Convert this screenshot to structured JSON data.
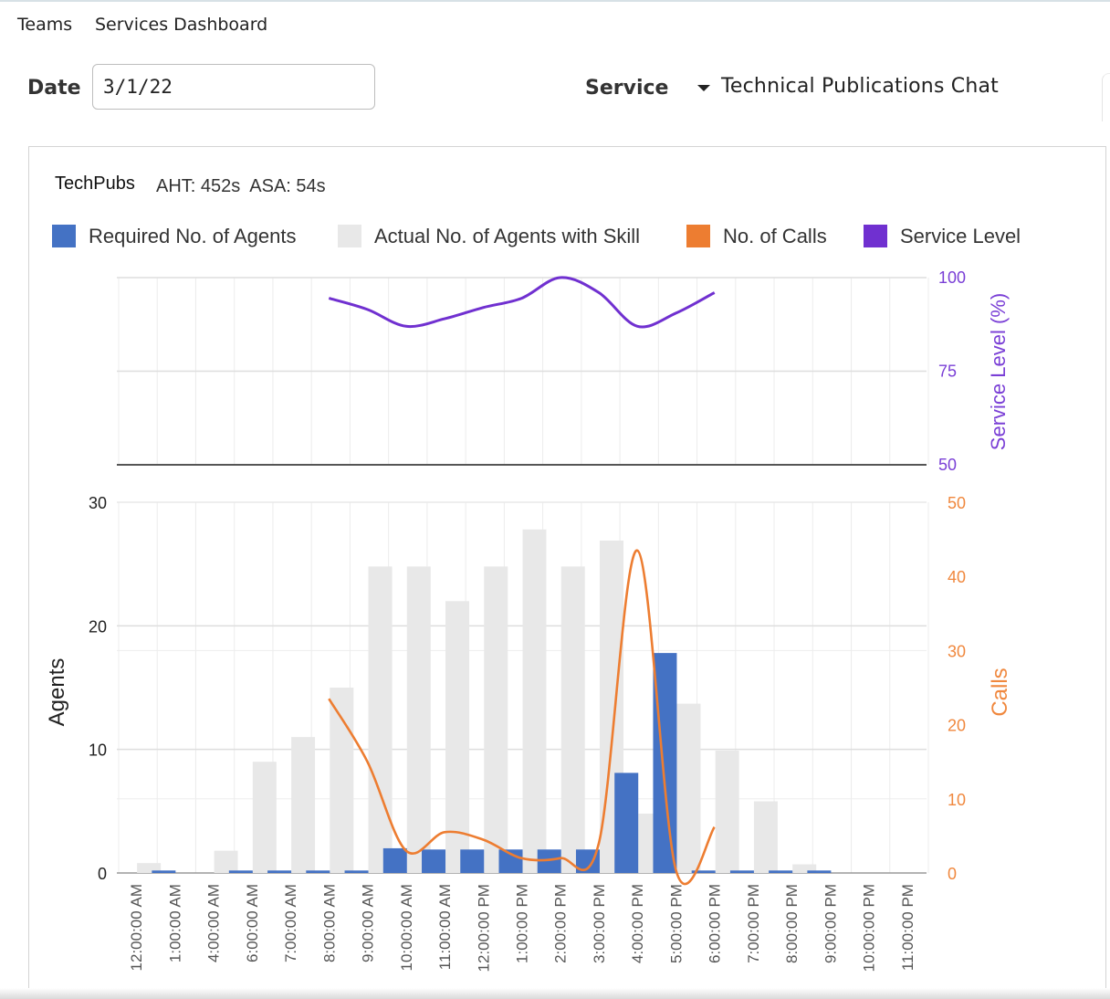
{
  "nav": {
    "teams": "Teams",
    "dashboard": "Services Dashboard"
  },
  "filters": {
    "date_label": "Date",
    "date_value": "3/1/22",
    "service_label": "Service",
    "service_value": "Technical Publications Chat"
  },
  "chart_header": {
    "team": "TechPubs",
    "metrics": "AHT: 452s  ASA: 54s"
  },
  "colors": {
    "required": "#4472c4",
    "actual": "#e8e8e8",
    "calls": "#ed7d31",
    "service_level": "#7030d0",
    "calls_axis": "#f0883e",
    "sl_axis": "#7a3fd6"
  },
  "chart_data": [
    {
      "type": "line",
      "title": "",
      "ylabel": "Service Level (%)",
      "ylim": [
        50,
        100
      ],
      "yticks": [
        50,
        75,
        100
      ],
      "legend": [
        {
          "name": "Required No. of Agents",
          "color": "#4472c4"
        },
        {
          "name": "Actual No. of Agents with Skill",
          "color": "#e8e8e8"
        },
        {
          "name": "No. of Calls",
          "color": "#ed7d31"
        },
        {
          "name": "Service Level",
          "color": "#7030d0"
        }
      ],
      "legend_position": "top",
      "grid": true,
      "x": [
        "8:00:00 AM",
        "9:00:00 AM",
        "10:00:00 AM",
        "11:00:00 AM",
        "12:00:00 PM",
        "1:00:00 PM",
        "2:00:00 PM",
        "3:00:00 PM",
        "4:00:00 PM",
        "5:00:00 PM",
        "6:00:00 PM"
      ],
      "series": [
        {
          "name": "Service Level",
          "values": [
            94.5,
            91.5,
            87,
            89,
            92,
            94.5,
            100,
            96,
            87,
            90.5,
            96
          ]
        }
      ]
    },
    {
      "type": "bar",
      "title": "",
      "categories": [
        "12:00:00 AM",
        "1:00:00 AM",
        "4:00:00 AM",
        "6:00:00 AM",
        "7:00:00 AM",
        "8:00:00 AM",
        "9:00:00 AM",
        "10:00:00 AM",
        "11:00:00 AM",
        "12:00:00 PM",
        "1:00:00 PM",
        "2:00:00 PM",
        "3:00:00 PM",
        "4:00:00 PM",
        "5:00:00 PM",
        "6:00:00 PM",
        "7:00:00 PM",
        "8:00:00 PM",
        "9:00:00 PM",
        "10:00:00 PM",
        "11:00:00 PM"
      ],
      "xlabel": "",
      "ylabel": "Agents",
      "ylim": [
        0,
        30
      ],
      "yticks": [
        0,
        10,
        20,
        30
      ],
      "y2label": "Calls",
      "y2lim": [
        0,
        50
      ],
      "y2ticks": [
        0,
        10,
        20,
        30,
        40,
        50
      ],
      "grid": true,
      "series": [
        {
          "name": "Required No. of Agents",
          "axis": "left",
          "values": [
            0,
            0.2,
            0,
            0.2,
            0.2,
            0.2,
            0.2,
            2,
            1.9,
            1.9,
            1.9,
            1.9,
            1.9,
            8.1,
            17.8,
            0.2,
            0.2,
            0.2,
            0.2,
            0,
            0
          ]
        },
        {
          "name": "Actual No. of Agents with Skill",
          "axis": "left",
          "values": [
            0.8,
            0,
            1.8,
            9,
            11,
            15,
            24.8,
            24.8,
            22,
            24.8,
            27.8,
            24.8,
            26.9,
            4.8,
            13.7,
            9.9,
            5.8,
            0.7,
            0,
            0,
            0
          ]
        },
        {
          "name": "No. of Calls",
          "axis": "right",
          "type": "line",
          "values": [
            null,
            null,
            null,
            null,
            null,
            23.5,
            15,
            3,
            5.5,
            4.5,
            2,
            2,
            4,
            43.5,
            0.4,
            6.2,
            null,
            null,
            null,
            null,
            null
          ]
        }
      ]
    }
  ]
}
